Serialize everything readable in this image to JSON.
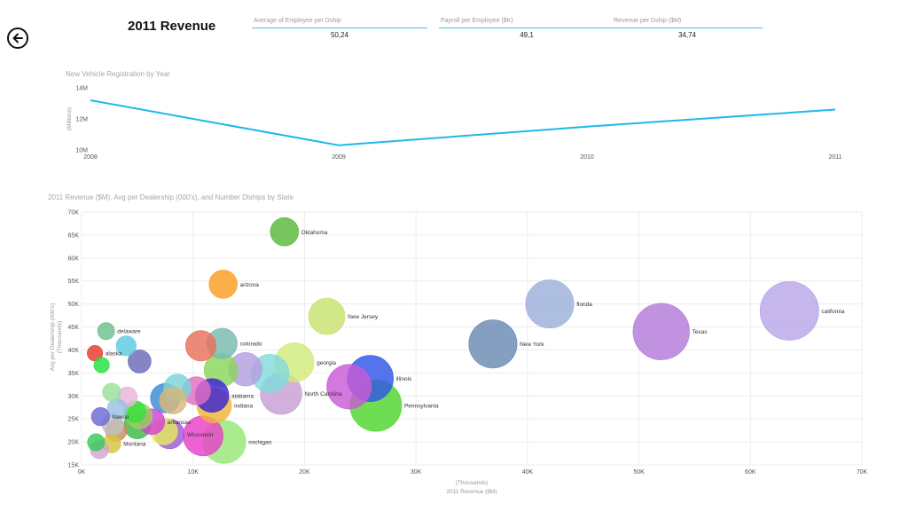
{
  "page": {
    "title": "2011 Revenue",
    "back_icon": "arrow-left-circle-icon"
  },
  "kpis": [
    {
      "label": "Average of Employee per Dship",
      "value": "50,24"
    },
    {
      "label": "Payroll per Employee ($K)",
      "value": "49,1"
    },
    {
      "label": "Revenue per Dship ($M)",
      "value": "34,74"
    }
  ],
  "colors": {
    "line": "#1fb8e8",
    "kpi_underline": "#4fc3e8",
    "grid": "#ececec"
  },
  "chart_data": [
    {
      "type": "line",
      "title": "New Vehicle Registration by Year",
      "ylabel": "(Millions)",
      "x": [
        "2008",
        "2009",
        "2010",
        "2011"
      ],
      "y_ticks": [
        "10M",
        "12M",
        "14M"
      ],
      "ylim": [
        10,
        14
      ],
      "series": [
        {
          "values": [
            13.2,
            10.3,
            11.5,
            12.6
          ]
        }
      ],
      "grid": false
    },
    {
      "type": "scatter",
      "title": "2011 Revenue ($M), Avg per Dealership (000's), and Number Dlships by State",
      "xlabel": "2011 Revenue ($M)",
      "xlabel_unit": "(Thousands)",
      "ylabel": "Avg per Dealership (000's)",
      "ylabel_unit": "(Thousands)",
      "x_ticks": [
        "0K",
        "10K",
        "20K",
        "30K",
        "40K",
        "50K",
        "60K",
        "70K"
      ],
      "y_ticks": [
        "15K",
        "20K",
        "25K",
        "30K",
        "35K",
        "40K",
        "45K",
        "50K",
        "55K",
        "60K",
        "65K",
        "70K"
      ],
      "xlim": [
        0,
        70000
      ],
      "ylim": [
        15000,
        70000
      ],
      "grid": true,
      "points": [
        {
          "label": "california",
          "x": 63500,
          "y": 48500,
          "size": 2600,
          "color": "#b8a6e8"
        },
        {
          "label": "Texas",
          "x": 52000,
          "y": 44000,
          "size": 2400,
          "color": "#b37ad9"
        },
        {
          "label": "florida",
          "x": 42000,
          "y": 50000,
          "size": 1750,
          "color": "#9cb0d9"
        },
        {
          "label": "New York",
          "x": 36900,
          "y": 41300,
          "size": 1750,
          "color": "#6a8ab2"
        },
        {
          "label": "Pennsylvania",
          "x": 26400,
          "y": 27900,
          "size": 2000,
          "color": "#4ed62e"
        },
        {
          "label": "illinois",
          "x": 25900,
          "y": 33800,
          "size": 1600,
          "color": "#2f55e6"
        },
        {
          "label": "",
          "x": 24000,
          "y": 32000,
          "size": 1500,
          "color": "#c95ad6"
        },
        {
          "label": "Oklahoma",
          "x": 18200,
          "y": 65700,
          "size": 600,
          "color": "#58b83a"
        },
        {
          "label": "arizona",
          "x": 12700,
          "y": 54300,
          "size": 600,
          "color": "#fb9d20"
        },
        {
          "label": "New Jersey",
          "x": 22000,
          "y": 47300,
          "size": 1000,
          "color": "#c8e070"
        },
        {
          "label": "georgia",
          "x": 19100,
          "y": 37300,
          "size": 1150,
          "color": "#d2ea7a"
        },
        {
          "label": "North Carolina",
          "x": 17900,
          "y": 30500,
          "size": 1300,
          "color": "#c79fd6"
        },
        {
          "label": "",
          "x": 16900,
          "y": 34900,
          "size": 1100,
          "color": "#83dbdc"
        },
        {
          "label": "",
          "x": 14700,
          "y": 35800,
          "size": 850,
          "color": "#b39fe0"
        },
        {
          "label": "colorado",
          "x": 12600,
          "y": 41400,
          "size": 700,
          "color": "#76b9b0"
        },
        {
          "label": "",
          "x": 10700,
          "y": 40900,
          "size": 700,
          "color": "#e86f5c"
        },
        {
          "label": "",
          "x": 12500,
          "y": 35600,
          "size": 850,
          "color": "#8ad65a"
        },
        {
          "label": "michigan",
          "x": 12800,
          "y": 20000,
          "size": 1400,
          "color": "#99e677"
        },
        {
          "label": "",
          "x": 10900,
          "y": 21300,
          "size": 1200,
          "color": "#e840c8"
        },
        {
          "label": "indiana",
          "x": 11900,
          "y": 27900,
          "size": 900,
          "color": "#f0b537"
        },
        {
          "label": "alabama",
          "x": 11700,
          "y": 30100,
          "size": 850,
          "color": "#3b25d6"
        },
        {
          "label": "",
          "x": 10300,
          "y": 31100,
          "size": 600,
          "color": "#e06ec2"
        },
        {
          "label": "",
          "x": 8600,
          "y": 31800,
          "size": 550,
          "color": "#7ad4d8"
        },
        {
          "label": "",
          "x": 8200,
          "y": 29000,
          "size": 550,
          "color": "#d8b87a"
        },
        {
          "label": "",
          "x": 7500,
          "y": 29500,
          "size": 650,
          "color": "#3a8ad6"
        },
        {
          "label": "Wisconsin",
          "x": 7900,
          "y": 21700,
          "size": 650,
          "color": "#9c5ad6"
        },
        {
          "label": "",
          "x": 7400,
          "y": 22300,
          "size": 550,
          "color": "#e4ec5a"
        },
        {
          "label": "arkansas",
          "x": 6300,
          "y": 24400,
          "size": 500,
          "color": "#d640d6"
        },
        {
          "label": "",
          "x": 5000,
          "y": 23600,
          "size": 550,
          "color": "#3ab84a"
        },
        {
          "label": "",
          "x": 5200,
          "y": 25600,
          "size": 500,
          "color": "#9ad060"
        },
        {
          "label": "",
          "x": 4800,
          "y": 26600,
          "size": 350,
          "color": "#35e03a"
        },
        {
          "label": "Montana",
          "x": 2700,
          "y": 19600,
          "size": 250,
          "color": "#d4c43c"
        },
        {
          "label": "",
          "x": 3100,
          "y": 22500,
          "size": 350,
          "color": "#c9905a"
        },
        {
          "label": "",
          "x": 2800,
          "y": 23800,
          "size": 350,
          "color": "#c2c2c2"
        },
        {
          "label": "hawaii",
          "x": 1700,
          "y": 25500,
          "size": 250,
          "color": "#6a6ad6"
        },
        {
          "label": "",
          "x": 4100,
          "y": 29800,
          "size": 300,
          "color": "#e8b4dc"
        },
        {
          "label": "",
          "x": 3200,
          "y": 27200,
          "size": 300,
          "color": "#9ac0e0"
        },
        {
          "label": "",
          "x": 2700,
          "y": 30800,
          "size": 250,
          "color": "#9ae09a"
        },
        {
          "label": "",
          "x": 1600,
          "y": 18300,
          "size": 250,
          "color": "#d4a4d4"
        },
        {
          "label": "",
          "x": 1300,
          "y": 19900,
          "size": 220,
          "color": "#37c958"
        },
        {
          "label": "alaska",
          "x": 1200,
          "y": 39300,
          "size": 180,
          "color": "#e8392a"
        },
        {
          "label": "",
          "x": 1800,
          "y": 36700,
          "size": 180,
          "color": "#23e03c"
        },
        {
          "label": "delaware",
          "x": 2200,
          "y": 44100,
          "size": 220,
          "color": "#6fbf8c"
        },
        {
          "label": "",
          "x": 4000,
          "y": 40900,
          "size": 300,
          "color": "#5ccbe0"
        },
        {
          "label": "",
          "x": 5200,
          "y": 37500,
          "size": 400,
          "color": "#6a6ab8"
        }
      ]
    }
  ]
}
